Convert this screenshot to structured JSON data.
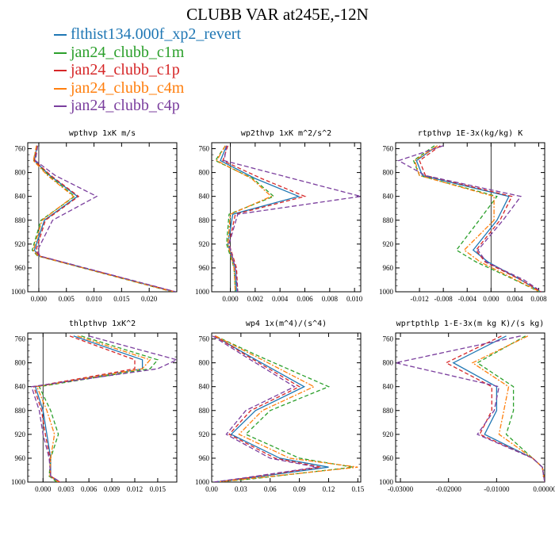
{
  "title": "CLUBB VAR at245E,-12N",
  "colors": {
    "c1": "#1f77b4",
    "c2": "#2ca02c",
    "c3": "#d62728",
    "c4": "#ff7f0e",
    "c5": "#7b3f9e"
  },
  "legend": [
    {
      "key": "c1",
      "label": "flthist134.000f_xp2_revert"
    },
    {
      "key": "c2",
      "label": "jan24_clubb_c1m"
    },
    {
      "key": "c3",
      "label": "jan24_clubb_c1p"
    },
    {
      "key": "c4",
      "label": "jan24_clubb_c4m"
    },
    {
      "key": "c5",
      "label": "jan24_clubb_c4p"
    }
  ],
  "chart_data": [
    {
      "type": "line",
      "title": "wpthvp  1xK m/s",
      "xlim": [
        -0.002,
        0.025
      ],
      "ylim": [
        1000,
        750
      ],
      "y_inverted": true,
      "xticks": [
        0.0,
        0.005,
        0.01,
        0.015,
        0.02
      ],
      "xtick_labels": [
        "0.000",
        "0.005",
        "0.010",
        "0.015",
        "0.020"
      ],
      "yticks": [
        760,
        800,
        840,
        880,
        920,
        960,
        1000
      ],
      "levels": [
        755,
        780,
        805,
        840,
        880,
        930,
        940,
        1000
      ],
      "series": [
        {
          "key": "c1",
          "values": [
            -0.0003,
            -0.0008,
            0.002,
            0.007,
            0.001,
            -0.0008,
            0.0,
            0.0245
          ]
        },
        {
          "key": "c2",
          "values": [
            -0.0004,
            -0.0009,
            0.0018,
            0.0065,
            0.0004,
            -0.0012,
            -0.0002,
            0.0242
          ]
        },
        {
          "key": "c3",
          "values": [
            -0.0003,
            -0.0008,
            0.0022,
            0.0072,
            0.0012,
            -0.0005,
            0.0001,
            0.0246
          ]
        },
        {
          "key": "c4",
          "values": [
            -0.0004,
            -0.001,
            0.0016,
            0.0063,
            0.0006,
            -0.001,
            -0.0001,
            0.0243
          ]
        },
        {
          "key": "c5",
          "values": [
            -0.0002,
            -0.0006,
            0.003,
            0.0105,
            0.0025,
            -0.0002,
            0.0002,
            0.0248
          ]
        }
      ]
    },
    {
      "type": "line",
      "title": "wp2thvp  1xK m^2/s^2",
      "xlim": [
        -0.0015,
        0.0105
      ],
      "ylim": [
        1000,
        750
      ],
      "y_inverted": true,
      "xticks": [
        0.0,
        0.002,
        0.004,
        0.006,
        0.008,
        0.01
      ],
      "xtick_labels": [
        "0.000",
        "0.002",
        "0.004",
        "0.006",
        "0.008",
        "0.010"
      ],
      "yticks": [
        760,
        800,
        840,
        880,
        920,
        960,
        1000
      ],
      "levels": [
        755,
        780,
        810,
        840,
        870,
        920,
        960,
        1000
      ],
      "series": [
        {
          "key": "c1",
          "values": [
            -0.0003,
            -0.0008,
            0.002,
            0.0055,
            0.0002,
            -0.0002,
            0.0004,
            0.0005
          ]
        },
        {
          "key": "c2",
          "values": [
            -0.0004,
            -0.0012,
            0.0018,
            0.0035,
            -0.0001,
            -0.0003,
            0.0003,
            0.0004
          ]
        },
        {
          "key": "c3",
          "values": [
            -0.0002,
            -0.0006,
            0.0025,
            0.006,
            0.0004,
            -0.0001,
            0.0005,
            0.0006
          ]
        },
        {
          "key": "c4",
          "values": [
            -0.0004,
            -0.0011,
            0.0017,
            0.0033,
            0.0,
            -0.0002,
            0.0003,
            0.0004
          ]
        },
        {
          "key": "c5",
          "values": [
            -0.0003,
            -0.0005,
            0.005,
            0.0105,
            0.0006,
            -0.0001,
            0.0004,
            0.0006
          ]
        }
      ]
    },
    {
      "type": "line",
      "title": "rtpthvp  1E-3x(kg/kg) K",
      "xlim": [
        -0.016,
        0.009
      ],
      "ylim": [
        1000,
        750
      ],
      "y_inverted": true,
      "xticks": [
        -0.012,
        -0.008,
        -0.004,
        0.0,
        0.004,
        0.008
      ],
      "xtick_labels": [
        "-0.012",
        "-0.008",
        "-0.004",
        "0.000",
        "0.004",
        "0.008"
      ],
      "yticks": [
        760,
        800,
        840,
        880,
        920,
        960,
        1000
      ],
      "levels": [
        755,
        780,
        805,
        840,
        880,
        930,
        950,
        980,
        1000
      ],
      "series": [
        {
          "key": "c1",
          "values": [
            -0.009,
            -0.0125,
            -0.0115,
            0.003,
            0.001,
            -0.003,
            -0.0005,
            0.005,
            0.0083
          ]
        },
        {
          "key": "c2",
          "values": [
            -0.0095,
            -0.013,
            -0.012,
            0.001,
            -0.002,
            -0.0058,
            -0.0025,
            0.004,
            0.0081
          ]
        },
        {
          "key": "c3",
          "values": [
            -0.0085,
            -0.012,
            -0.011,
            0.0035,
            0.0015,
            -0.0025,
            -0.001,
            0.005,
            0.0084
          ]
        },
        {
          "key": "c4",
          "values": [
            -0.009,
            -0.0128,
            -0.012,
            0.0005,
            0.0005,
            -0.0045,
            -0.0018,
            0.0042,
            0.0082
          ]
        },
        {
          "key": "c5",
          "values": [
            -0.008,
            -0.0155,
            -0.011,
            0.005,
            0.002,
            -0.0022,
            -0.0008,
            0.0055,
            0.0085
          ]
        }
      ]
    },
    {
      "type": "line",
      "title": "thlpthvp  1xK^2",
      "xlim": [
        -0.002,
        0.0175
      ],
      "ylim": [
        1000,
        750
      ],
      "y_inverted": true,
      "xticks": [
        0.0,
        0.003,
        0.006,
        0.009,
        0.012,
        0.015
      ],
      "xtick_labels": [
        "0.000",
        "0.003",
        "0.006",
        "0.009",
        "0.012",
        "0.015"
      ],
      "yticks": [
        760,
        800,
        840,
        880,
        920,
        960,
        1000
      ],
      "levels": [
        755,
        795,
        810,
        840,
        880,
        920,
        960,
        990,
        1000
      ],
      "series": [
        {
          "key": "c1",
          "values": [
            0.004,
            0.013,
            0.013,
            -0.001,
            0.0,
            0.0005,
            0.001,
            0.001,
            0.002
          ]
        },
        {
          "key": "c2",
          "values": [
            0.005,
            0.015,
            0.014,
            -0.0005,
            0.001,
            0.002,
            0.001,
            0.0008,
            0.0018
          ]
        },
        {
          "key": "c3",
          "values": [
            0.0035,
            0.012,
            0.012,
            -0.0012,
            -0.0002,
            0.0003,
            0.0009,
            0.001,
            0.0022
          ]
        },
        {
          "key": "c4",
          "values": [
            0.0045,
            0.014,
            0.013,
            -0.0008,
            0.0005,
            0.0015,
            0.001,
            0.0009,
            0.002
          ]
        },
        {
          "key": "c5",
          "values": [
            0.006,
            0.0175,
            0.015,
            -0.0015,
            -0.0005,
            0.0,
            0.0008,
            0.001,
            0.0023
          ]
        }
      ]
    },
    {
      "type": "line",
      "title": "wp4  1x(m^4)/(s^4)",
      "xlim": [
        0.0,
        0.153
      ],
      "ylim": [
        1000,
        750
      ],
      "y_inverted": true,
      "xticks": [
        0.0,
        0.03,
        0.06,
        0.09,
        0.12,
        0.15
      ],
      "xtick_labels": [
        "0.00",
        "0.03",
        "0.06",
        "0.09",
        "0.12",
        "0.15"
      ],
      "yticks": [
        760,
        800,
        840,
        880,
        920,
        960,
        1000
      ],
      "levels": [
        755,
        790,
        840,
        880,
        920,
        960,
        975,
        995,
        1000
      ],
      "series": [
        {
          "key": "c1",
          "values": [
            0.003,
            0.04,
            0.095,
            0.045,
            0.02,
            0.07,
            0.12,
            0.03,
            0.003
          ]
        },
        {
          "key": "c2",
          "values": [
            0.004,
            0.05,
            0.12,
            0.06,
            0.035,
            0.09,
            0.145,
            0.04,
            0.004
          ]
        },
        {
          "key": "c3",
          "values": [
            0.003,
            0.038,
            0.09,
            0.04,
            0.018,
            0.065,
            0.112,
            0.028,
            0.003
          ]
        },
        {
          "key": "c4",
          "values": [
            0.004,
            0.046,
            0.105,
            0.052,
            0.028,
            0.08,
            0.15,
            0.035,
            0.004
          ]
        },
        {
          "key": "c5",
          "values": [
            0.001,
            0.035,
            0.085,
            0.035,
            0.015,
            0.06,
            0.108,
            0.025,
            0.002
          ]
        }
      ]
    },
    {
      "type": "line",
      "title": "wprtpthlp  1-E-3x(m kg K)/(s kg)",
      "xlim": [
        -0.031,
        0.0
      ],
      "ylim": [
        1000,
        750
      ],
      "y_inverted": true,
      "xticks": [
        -0.03,
        -0.02,
        -0.01,
        0.0
      ],
      "xtick_labels": [
        "-0.03000",
        "-0.02000",
        "-0.01000",
        "0.00000"
      ],
      "yticks": [
        760,
        800,
        840,
        880,
        920,
        960,
        1000
      ],
      "levels": [
        755,
        800,
        840,
        880,
        920,
        960,
        975,
        1000
      ],
      "series": [
        {
          "key": "c1",
          "values": [
            -0.008,
            -0.019,
            -0.01,
            -0.01,
            -0.0125,
            -0.0025,
            -0.0005,
            0.0
          ]
        },
        {
          "key": "c2",
          "values": [
            -0.004,
            -0.014,
            -0.0065,
            -0.0065,
            -0.008,
            -0.0025,
            -0.0005,
            0.0
          ]
        },
        {
          "key": "c3",
          "values": [
            -0.009,
            -0.0205,
            -0.011,
            -0.011,
            -0.0135,
            -0.0025,
            -0.0005,
            0.0
          ]
        },
        {
          "key": "c4",
          "values": [
            -0.0035,
            -0.015,
            -0.0075,
            -0.0085,
            -0.0095,
            -0.0025,
            -0.0005,
            0.0
          ]
        },
        {
          "key": "c5",
          "values": [
            -0.005,
            -0.031,
            -0.0095,
            -0.0105,
            -0.014,
            -0.0025,
            -0.0005,
            0.0
          ]
        }
      ]
    }
  ]
}
